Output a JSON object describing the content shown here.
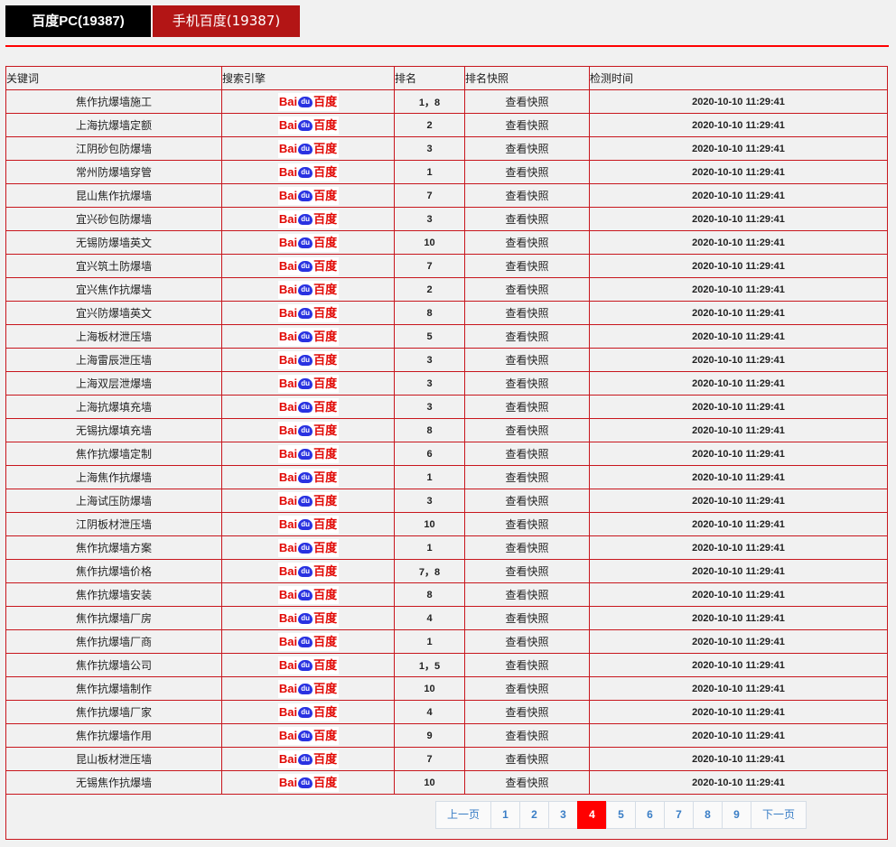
{
  "tabs": [
    {
      "label": "百度PC(19387)"
    },
    {
      "label": "手机百度(19387)"
    }
  ],
  "table": {
    "headers": [
      "关键词",
      "搜索引擎",
      "排名",
      "排名快照",
      "检测时间"
    ],
    "engine": {
      "logo_text": "Bai du 百度",
      "icon": "baidu-logo"
    },
    "snapshot_label": "查看快照",
    "rows": [
      [
        "焦作抗爆墙施工",
        "1，8"
      ],
      [
        "上海抗爆墙定额",
        "2"
      ],
      [
        "江阴砂包防爆墙",
        "3"
      ],
      [
        "常州防爆墙穿管",
        "1"
      ],
      [
        "昆山焦作抗爆墙",
        "7"
      ],
      [
        "宜兴砂包防爆墙",
        "3"
      ],
      [
        "无锡防爆墙英文",
        "10"
      ],
      [
        "宜兴筑土防爆墙",
        "7"
      ],
      [
        "宜兴焦作抗爆墙",
        "2"
      ],
      [
        "宜兴防爆墙英文",
        "8"
      ],
      [
        "上海板材泄压墙",
        "5"
      ],
      [
        "上海雷辰泄压墙",
        "3"
      ],
      [
        "上海双层泄爆墙",
        "3"
      ],
      [
        "上海抗爆填充墙",
        "3"
      ],
      [
        "无锡抗爆填充墙",
        "8"
      ],
      [
        "焦作抗爆墙定制",
        "6"
      ],
      [
        "上海焦作抗爆墙",
        "1"
      ],
      [
        "上海试压防爆墙",
        "3"
      ],
      [
        "江阴板材泄压墙",
        "10"
      ],
      [
        "焦作抗爆墙方案",
        "1"
      ],
      [
        "焦作抗爆墙价格",
        "7，8"
      ],
      [
        "焦作抗爆墙安装",
        "8"
      ],
      [
        "焦作抗爆墙厂房",
        "4"
      ],
      [
        "焦作抗爆墙厂商",
        "1"
      ],
      [
        "焦作抗爆墙公司",
        "1，5"
      ],
      [
        "焦作抗爆墙制作",
        "10"
      ],
      [
        "焦作抗爆墙厂家",
        "4"
      ],
      [
        "焦作抗爆墙作用",
        "9"
      ],
      [
        "昆山板材泄压墙",
        "7"
      ],
      [
        "无锡焦作抗爆墙",
        "10"
      ]
    ],
    "time": "2020-10-10 11:29:41"
  },
  "pagination": {
    "prev": "上一页",
    "next": "下一页",
    "pages": [
      "1",
      "2",
      "3",
      "4",
      "5",
      "6",
      "7",
      "8",
      "9"
    ],
    "current": "4",
    "active_color": "#ff0000"
  }
}
